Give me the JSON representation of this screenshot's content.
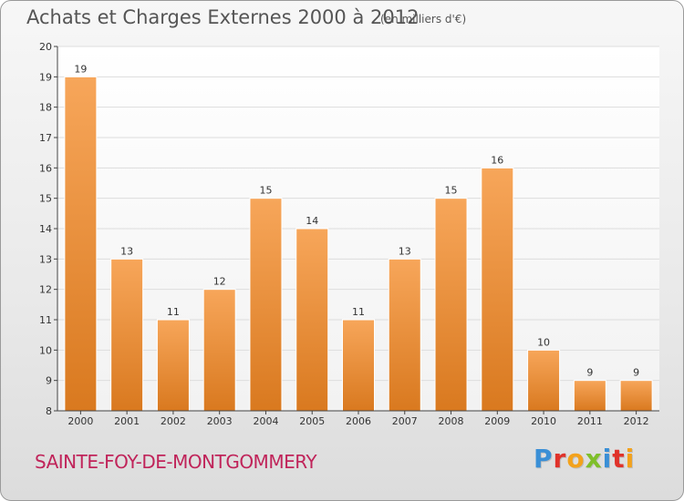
{
  "header": {
    "title": "Achats et Charges Externes 2000 à 2012",
    "unit": "(en milliers d'€)"
  },
  "footer": {
    "commune": "SAINTE-FOY-DE-MONTGOMMERY",
    "brand_letters": [
      "P",
      "r",
      "o",
      "x",
      "i",
      "t",
      "i"
    ],
    "brand_colors": [
      "#3a8fd6",
      "#e0322a",
      "#f3a21c",
      "#7fbf2a",
      "#3a8fd6",
      "#e0322a",
      "#f3a21c"
    ]
  },
  "colors": {
    "bar_top": "#f7a65a",
    "bar_bottom": "#d9791f",
    "axis": "#444444",
    "grid": "#dddddd"
  },
  "chart_data": {
    "type": "bar",
    "categories": [
      "2000",
      "2001",
      "2002",
      "2003",
      "2004",
      "2005",
      "2006",
      "2007",
      "2008",
      "2009",
      "2010",
      "2011",
      "2012"
    ],
    "values": [
      19,
      13,
      11,
      12,
      15,
      14,
      11,
      13,
      15,
      16,
      10,
      9,
      9
    ],
    "data_labels": [
      "19",
      "13",
      "11",
      "12",
      "15",
      "14",
      "11",
      "13",
      "15",
      "16",
      "10",
      "9",
      "9"
    ],
    "ylim": [
      8,
      20
    ],
    "yticks": [
      "8",
      "9",
      "10",
      "11",
      "12",
      "13",
      "14",
      "15",
      "16",
      "17",
      "18",
      "19",
      "20"
    ],
    "grid": true
  }
}
